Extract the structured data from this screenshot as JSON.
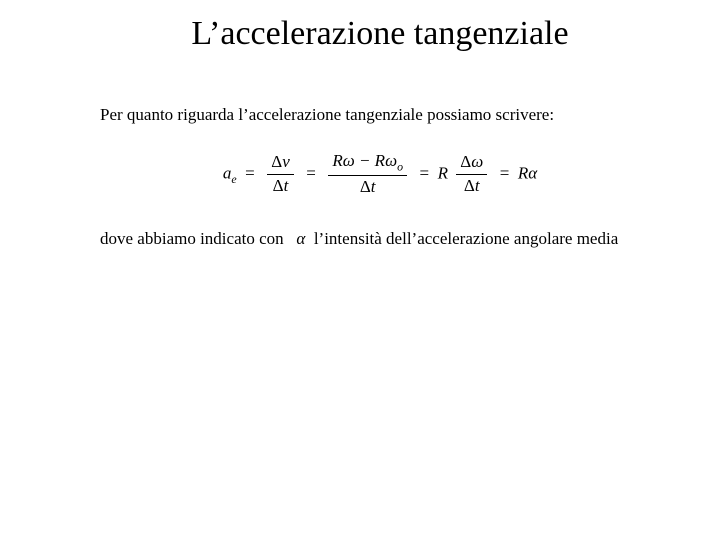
{
  "title": "L’accelerazione tangenziale",
  "para1": "Per quanto riguarda l’accelerazione tangenziale possiamo scrivere:",
  "eq": {
    "lhs_var": "a",
    "lhs_sub": "e",
    "f1_num_left": "Δ",
    "f1_num_right": "v",
    "f1_den_left": "Δ",
    "f1_den_right": "t",
    "f2_num": "Rω − Rω",
    "f2_num_sub": "o",
    "f2_den_left": "Δ",
    "f2_den_right": "t",
    "mid_R": "R",
    "f3_num_left": "Δ",
    "f3_num_right": "ω",
    "f3_den_left": "Δ",
    "f3_den_right": "t",
    "rhs": "Rα"
  },
  "para2_pre": "dove abbiamo indicato con ",
  "para2_alpha": "α",
  "para2_post": " l’intensità dell’accelerazione angolare media"
}
